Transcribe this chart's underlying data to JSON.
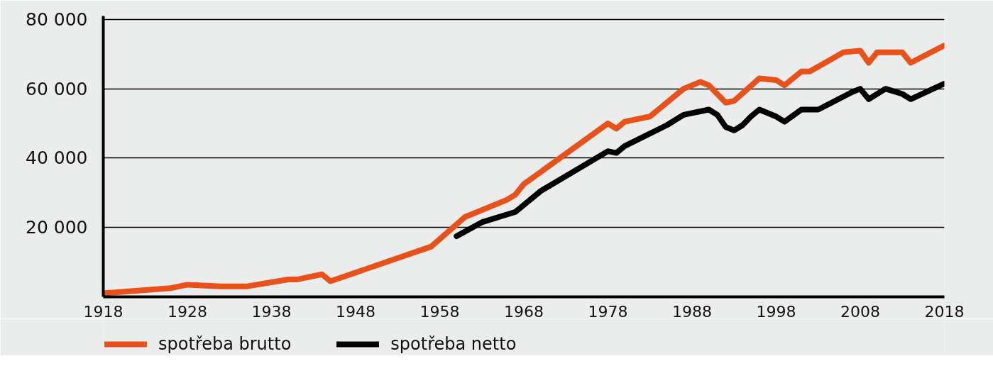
{
  "chart_data": {
    "type": "line",
    "xlim": [
      1918,
      2018
    ],
    "xticks": [
      1918,
      1928,
      1938,
      1948,
      1958,
      1968,
      1978,
      1988,
      1998,
      2008,
      2018
    ],
    "ylim": [
      0,
      81000
    ],
    "yticks": [
      {
        "value": 20000,
        "label": "20 000"
      },
      {
        "value": 40000,
        "label": "40 000"
      },
      {
        "value": 60000,
        "label": "60 000"
      },
      {
        "value": 80000,
        "label": "80 000"
      }
    ],
    "grid": "y",
    "legend": "bottom",
    "series": [
      {
        "name": "spotřeba brutto",
        "color": "#e8521a",
        "x": [
          1918,
          1926,
          1928,
          1932,
          1935,
          1940,
          1941,
          1944,
          1945,
          1957,
          1961,
          1966,
          1967,
          1968,
          1978,
          1979,
          1980,
          1983,
          1986,
          1987,
          1989,
          1990,
          1992,
          1993,
          1996,
          1998,
          1999,
          2001,
          2002,
          2006,
          2008,
          2009,
          2010,
          2013,
          2014,
          2018
        ],
        "values": [
          1000,
          2500,
          3500,
          3000,
          3000,
          5000,
          5000,
          6500,
          4500,
          14500,
          23000,
          28000,
          29500,
          32500,
          50000,
          48500,
          50500,
          52000,
          58000,
          60000,
          62000,
          61000,
          56000,
          56500,
          63000,
          62500,
          61000,
          65000,
          65000,
          70500,
          71000,
          67500,
          70500,
          70500,
          67500,
          72500
        ]
      },
      {
        "name": "spotřeba netto",
        "color": "#000000",
        "x": [
          1960,
          1963,
          1967,
          1970,
          1978,
          1979,
          1980,
          1985,
          1987,
          1990,
          1991,
          1992,
          1993,
          1994,
          1995,
          1996,
          1998,
          1999,
          2001,
          2003,
          2007,
          2008,
          2009,
          2011,
          2013,
          2014,
          2018
        ],
        "values": [
          17500,
          21500,
          24500,
          30500,
          42000,
          41500,
          43500,
          49500,
          52500,
          54000,
          52500,
          49000,
          48000,
          49500,
          52000,
          54000,
          52000,
          50500,
          54000,
          54000,
          59000,
          60000,
          57000,
          60000,
          58500,
          57000,
          61500
        ]
      }
    ]
  }
}
